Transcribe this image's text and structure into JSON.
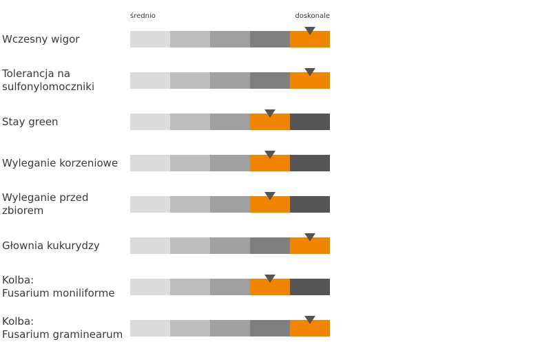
{
  "chart_data": {
    "type": "rating-scale",
    "scale_labels": {
      "low": "średnio",
      "high": "doskonale"
    },
    "levels": 5,
    "colors": {
      "segments": [
        "#dcdcdc",
        "#bdbdbd",
        "#a0a0a0",
        "#7f7f7f",
        "#555555"
      ],
      "highlight": "#f28500",
      "marker": "#555555"
    },
    "traits": [
      {
        "lines": [
          "Wczesny wigor"
        ],
        "rating": 5
      },
      {
        "lines": [
          "Tolerancja na",
          "sulfonylomoczniki"
        ],
        "rating": 5
      },
      {
        "lines": [
          "Stay green"
        ],
        "rating": 4
      },
      {
        "lines": [
          "Wyleganie korzeniowe"
        ],
        "rating": 4
      },
      {
        "lines": [
          "Wyleganie przed",
          "zbiorem"
        ],
        "rating": 4
      },
      {
        "lines": [
          "Głownia kukurydzy"
        ],
        "rating": 5
      },
      {
        "lines": [
          "Kolba:",
          "Fusarium moniliforme"
        ],
        "rating": 4
      },
      {
        "lines": [
          "Kolba:",
          "Fusarium graminearum"
        ],
        "rating": 5
      }
    ]
  }
}
